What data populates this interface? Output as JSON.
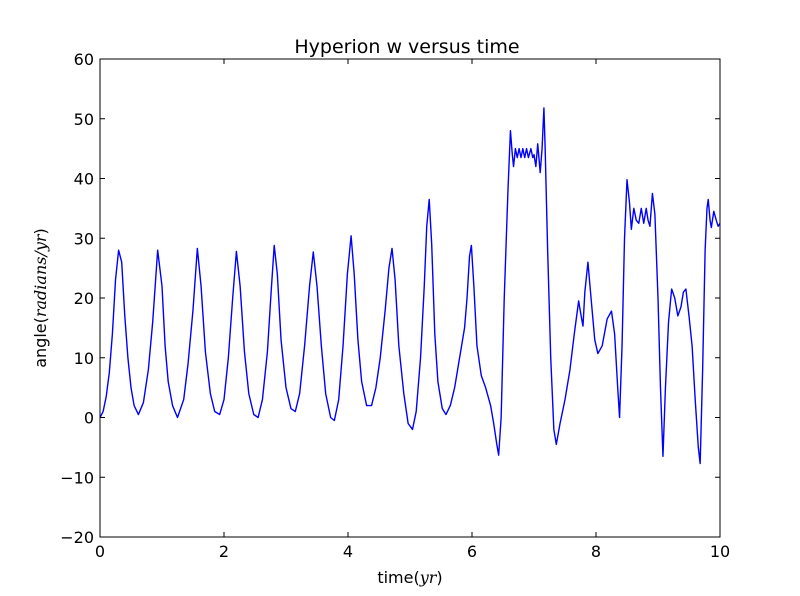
{
  "chart_data": {
    "type": "line",
    "title": "Hyperion w versus time",
    "xlabel": {
      "prefix": "time(",
      "var": "yr",
      "suffix": ")"
    },
    "ylabel": {
      "prefix": "angle(",
      "var": "radians/yr",
      "suffix": ")"
    },
    "xlim": [
      0,
      10
    ],
    "ylim": [
      -20,
      60
    ],
    "xticks": [
      0,
      2,
      4,
      6,
      8,
      10
    ],
    "yticks": [
      -20,
      -10,
      0,
      10,
      20,
      30,
      40,
      50,
      60
    ],
    "xtick_labels": [
      "0",
      "2",
      "4",
      "6",
      "8",
      "10"
    ],
    "ytick_labels": [
      "−20",
      "−10",
      "0",
      "10",
      "20",
      "30",
      "40",
      "50",
      "60"
    ],
    "grid": false,
    "series": [
      {
        "color": "#0000ff",
        "points": [
          [
            0.0,
            0.0
          ],
          [
            0.05,
            1.0
          ],
          [
            0.1,
            3.5
          ],
          [
            0.15,
            7.5
          ],
          [
            0.2,
            14.0
          ],
          [
            0.25,
            23.0
          ],
          [
            0.3,
            28.0
          ],
          [
            0.35,
            26.0
          ],
          [
            0.4,
            17.0
          ],
          [
            0.45,
            10.0
          ],
          [
            0.5,
            5.0
          ],
          [
            0.55,
            2.0
          ],
          [
            0.62,
            0.5
          ],
          [
            0.7,
            2.5
          ],
          [
            0.78,
            8.0
          ],
          [
            0.85,
            16.0
          ],
          [
            0.93,
            28.0
          ],
          [
            1.0,
            22.0
          ],
          [
            1.05,
            12.0
          ],
          [
            1.1,
            6.0
          ],
          [
            1.17,
            2.0
          ],
          [
            1.25,
            0.0
          ],
          [
            1.35,
            3.0
          ],
          [
            1.42,
            9.0
          ],
          [
            1.5,
            18.0
          ],
          [
            1.57,
            28.3
          ],
          [
            1.63,
            22.0
          ],
          [
            1.7,
            11.0
          ],
          [
            1.78,
            4.0
          ],
          [
            1.85,
            1.0
          ],
          [
            1.93,
            0.5
          ],
          [
            2.0,
            3.0
          ],
          [
            2.07,
            10.0
          ],
          [
            2.14,
            20.0
          ],
          [
            2.2,
            27.8
          ],
          [
            2.26,
            22.0
          ],
          [
            2.33,
            11.0
          ],
          [
            2.4,
            4.0
          ],
          [
            2.48,
            0.5
          ],
          [
            2.55,
            0.0
          ],
          [
            2.62,
            3.0
          ],
          [
            2.7,
            11.0
          ],
          [
            2.76,
            21.0
          ],
          [
            2.81,
            28.8
          ],
          [
            2.86,
            24.0
          ],
          [
            2.92,
            13.0
          ],
          [
            3.0,
            5.0
          ],
          [
            3.08,
            1.5
          ],
          [
            3.15,
            1.0
          ],
          [
            3.22,
            4.0
          ],
          [
            3.3,
            12.0
          ],
          [
            3.38,
            22.0
          ],
          [
            3.44,
            27.7
          ],
          [
            3.5,
            22.0
          ],
          [
            3.57,
            12.0
          ],
          [
            3.64,
            4.0
          ],
          [
            3.72,
            0.0
          ],
          [
            3.78,
            -0.5
          ],
          [
            3.85,
            3.0
          ],
          [
            3.92,
            12.0
          ],
          [
            3.99,
            24.0
          ],
          [
            4.05,
            30.4
          ],
          [
            4.1,
            24.0
          ],
          [
            4.16,
            13.0
          ],
          [
            4.22,
            6.0
          ],
          [
            4.3,
            2.0
          ],
          [
            4.38,
            2.0
          ],
          [
            4.45,
            5.0
          ],
          [
            4.52,
            10.0
          ],
          [
            4.6,
            18.0
          ],
          [
            4.66,
            25.0
          ],
          [
            4.71,
            28.3
          ],
          [
            4.76,
            23.0
          ],
          [
            4.82,
            12.0
          ],
          [
            4.9,
            4.0
          ],
          [
            4.97,
            -1.0
          ],
          [
            5.04,
            -2.0
          ],
          [
            5.1,
            1.0
          ],
          [
            5.17,
            10.0
          ],
          [
            5.23,
            22.0
          ],
          [
            5.27,
            32.0
          ],
          [
            5.31,
            36.5
          ],
          [
            5.35,
            29.0
          ],
          [
            5.4,
            14.0
          ],
          [
            5.45,
            6.0
          ],
          [
            5.52,
            1.5
          ],
          [
            5.58,
            0.5
          ],
          [
            5.65,
            2.0
          ],
          [
            5.72,
            5.0
          ],
          [
            5.8,
            10.0
          ],
          [
            5.88,
            15.0
          ],
          [
            5.92,
            20.0
          ],
          [
            5.96,
            27.0
          ],
          [
            5.99,
            28.8
          ],
          [
            6.03,
            22.0
          ],
          [
            6.08,
            12.0
          ],
          [
            6.15,
            7.0
          ],
          [
            6.22,
            5.0
          ],
          [
            6.3,
            2.0
          ],
          [
            6.35,
            -1.0
          ],
          [
            6.4,
            -4.5
          ],
          [
            6.43,
            -6.3
          ],
          [
            6.47,
            0.0
          ],
          [
            6.52,
            20.0
          ],
          [
            6.58,
            38.0
          ],
          [
            6.62,
            48.0
          ],
          [
            6.65,
            44.0
          ],
          [
            6.67,
            42.0
          ],
          [
            6.7,
            45.0
          ],
          [
            6.73,
            43.5
          ],
          [
            6.76,
            45.0
          ],
          [
            6.79,
            43.5
          ],
          [
            6.82,
            45.0
          ],
          [
            6.85,
            43.5
          ],
          [
            6.88,
            45.0
          ],
          [
            6.91,
            43.5
          ],
          [
            6.95,
            45.0
          ],
          [
            6.98,
            43.5
          ],
          [
            7.0,
            44.0
          ],
          [
            7.03,
            42.0
          ],
          [
            7.06,
            45.8
          ],
          [
            7.1,
            41.0
          ],
          [
            7.13,
            45.0
          ],
          [
            7.16,
            51.8
          ],
          [
            7.18,
            45.0
          ],
          [
            7.22,
            28.0
          ],
          [
            7.27,
            10.0
          ],
          [
            7.32,
            -2.0
          ],
          [
            7.36,
            -4.5
          ],
          [
            7.42,
            -1.0
          ],
          [
            7.5,
            3.0
          ],
          [
            7.58,
            8.0
          ],
          [
            7.65,
            14.0
          ],
          [
            7.72,
            19.5
          ],
          [
            7.76,
            17.0
          ],
          [
            7.79,
            15.3
          ],
          [
            7.82,
            21.0
          ],
          [
            7.87,
            26.0
          ],
          [
            7.92,
            20.0
          ],
          [
            7.98,
            13.0
          ],
          [
            8.03,
            10.7
          ],
          [
            8.1,
            12.0
          ],
          [
            8.18,
            16.5
          ],
          [
            8.25,
            17.8
          ],
          [
            8.3,
            14.0
          ],
          [
            8.35,
            5.0
          ],
          [
            8.38,
            0.0
          ],
          [
            8.42,
            12.0
          ],
          [
            8.46,
            30.0
          ],
          [
            8.5,
            39.8
          ],
          [
            8.54,
            36.0
          ],
          [
            8.57,
            31.5
          ],
          [
            8.61,
            35.0
          ],
          [
            8.65,
            33.0
          ],
          [
            8.69,
            32.5
          ],
          [
            8.73,
            35.0
          ],
          [
            8.77,
            32.5
          ],
          [
            8.81,
            35.0
          ],
          [
            8.84,
            33.0
          ],
          [
            8.87,
            32.0
          ],
          [
            8.91,
            37.5
          ],
          [
            8.95,
            34.0
          ],
          [
            9.0,
            20.0
          ],
          [
            9.04,
            5.0
          ],
          [
            9.08,
            -6.5
          ],
          [
            9.12,
            5.0
          ],
          [
            9.17,
            16.0
          ],
          [
            9.22,
            21.5
          ],
          [
            9.27,
            20.0
          ],
          [
            9.32,
            17.0
          ],
          [
            9.37,
            18.5
          ],
          [
            9.41,
            21.0
          ],
          [
            9.45,
            21.5
          ],
          [
            9.5,
            17.0
          ],
          [
            9.55,
            12.0
          ],
          [
            9.6,
            3.0
          ],
          [
            9.65,
            -5.0
          ],
          [
            9.68,
            -7.7
          ],
          [
            9.72,
            8.0
          ],
          [
            9.76,
            28.0
          ],
          [
            9.79,
            35.0
          ],
          [
            9.81,
            36.5
          ],
          [
            9.84,
            33.0
          ],
          [
            9.86,
            31.8
          ],
          [
            9.9,
            34.5
          ],
          [
            9.94,
            33.0
          ],
          [
            9.97,
            32.0
          ],
          [
            10.0,
            32.5
          ]
        ]
      }
    ]
  }
}
